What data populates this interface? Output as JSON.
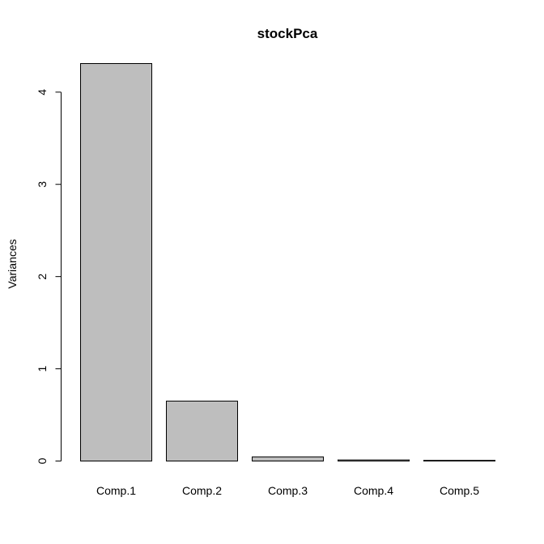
{
  "chart_data": {
    "type": "bar",
    "title": "stockPca",
    "xlabel": "",
    "ylabel": "Variances",
    "categories": [
      "Comp.1",
      "Comp.2",
      "Comp.3",
      "Comp.4",
      "Comp.5"
    ],
    "values": [
      4.31,
      0.65,
      0.045,
      0.012,
      0.003
    ],
    "ylim": [
      0,
      4.31
    ],
    "yticks": [
      0,
      1,
      2,
      3,
      4
    ],
    "ytick_labels": [
      "0",
      "1",
      "2",
      "3",
      "4"
    ],
    "grid": false,
    "bar_color": "#bebebe",
    "edge_color": "#000000"
  }
}
